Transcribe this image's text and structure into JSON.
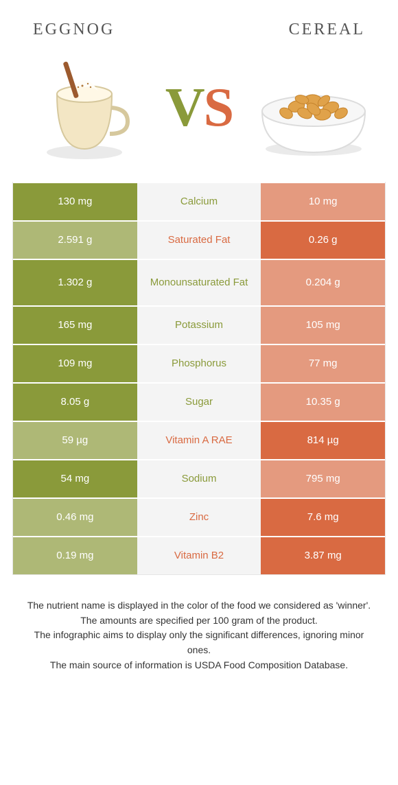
{
  "colors": {
    "left": "#8a9a3a",
    "right": "#d96a42",
    "mid_bg": "#f4f4f4",
    "left_faded": "#aeb876",
    "right_faded": "#e49a7f"
  },
  "header": {
    "left_title": "EGGNOG",
    "right_title": "CEREAL"
  },
  "vs": {
    "v": "V",
    "s": "S"
  },
  "rows": [
    {
      "label": "Calcium",
      "left": "130 mg",
      "right": "10 mg",
      "winner": "left",
      "tall": false
    },
    {
      "label": "Saturated Fat",
      "left": "2.591 g",
      "right": "0.26 g",
      "winner": "right",
      "tall": false
    },
    {
      "label": "Monounsaturated Fat",
      "left": "1.302 g",
      "right": "0.204 g",
      "winner": "left",
      "tall": true
    },
    {
      "label": "Potassium",
      "left": "165 mg",
      "right": "105 mg",
      "winner": "left",
      "tall": false
    },
    {
      "label": "Phosphorus",
      "left": "109 mg",
      "right": "77 mg",
      "winner": "left",
      "tall": false
    },
    {
      "label": "Sugar",
      "left": "8.05 g",
      "right": "10.35 g",
      "winner": "left",
      "tall": false
    },
    {
      "label": "Vitamin A RAE",
      "left": "59 µg",
      "right": "814 µg",
      "winner": "right",
      "tall": false
    },
    {
      "label": "Sodium",
      "left": "54 mg",
      "right": "795 mg",
      "winner": "left",
      "tall": false
    },
    {
      "label": "Zinc",
      "left": "0.46 mg",
      "right": "7.6 mg",
      "winner": "right",
      "tall": false
    },
    {
      "label": "Vitamin B2",
      "left": "0.19 mg",
      "right": "3.87 mg",
      "winner": "right",
      "tall": false
    }
  ],
  "footer": {
    "l1": "The nutrient name is displayed in the color of the food we considered as 'winner'.",
    "l2": "The amounts are specified per 100 gram of the product.",
    "l3": "The infographic aims to display only the significant differences, ignoring minor ones.",
    "l4": "The main source of information is USDA Food Composition Database."
  }
}
